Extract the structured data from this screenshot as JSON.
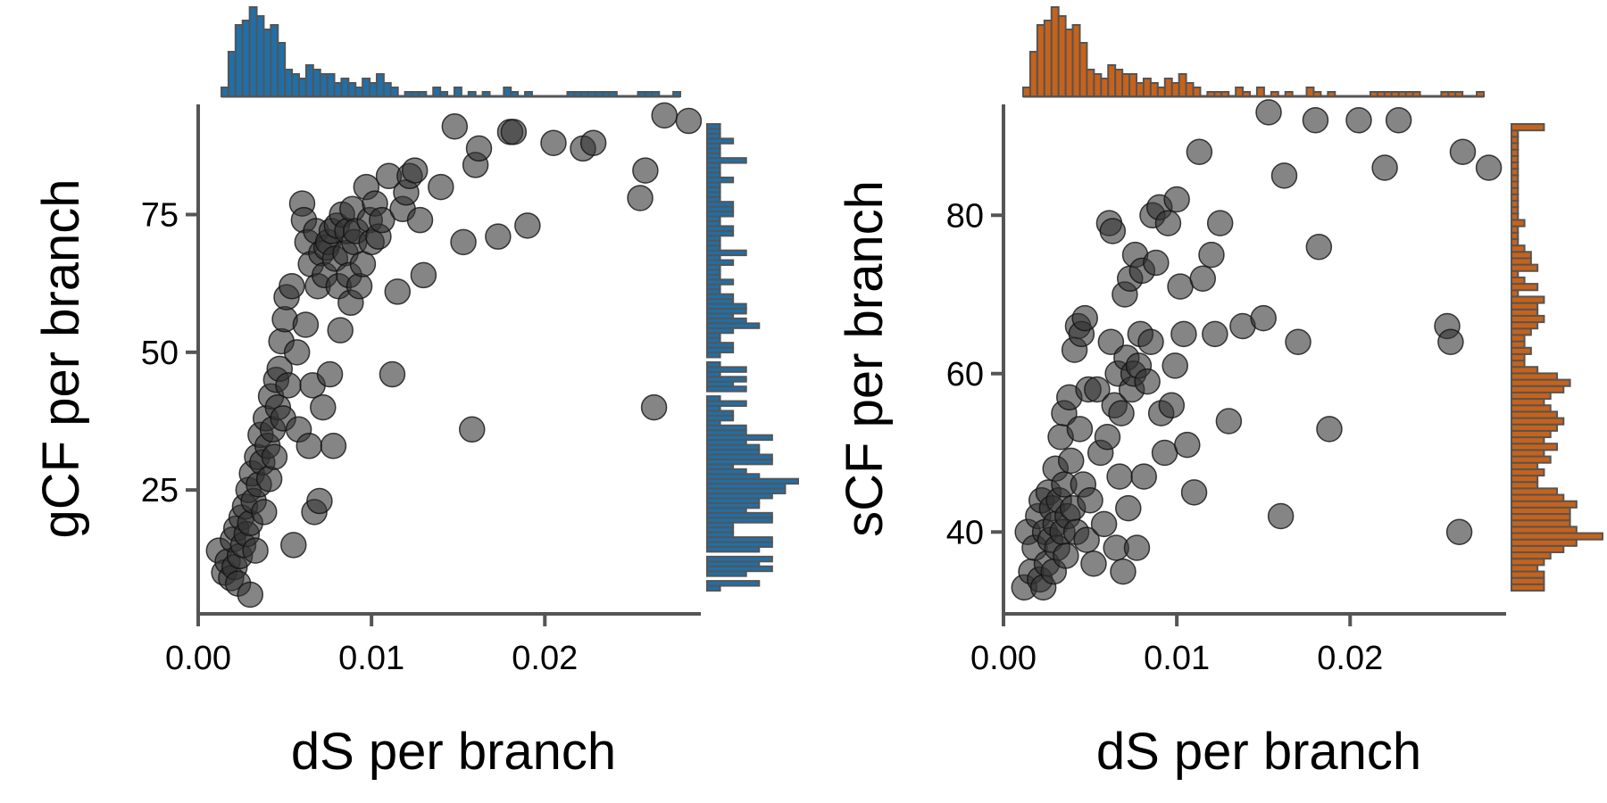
{
  "chart_data": [
    {
      "type": "scatter",
      "marginal_histograms": true,
      "xlabel": "dS per branch",
      "ylabel": "gCF per branch",
      "xlim": [
        0,
        0.029
      ],
      "ylim": [
        3,
        95
      ],
      "xticks": [
        0.0,
        0.01,
        0.02
      ],
      "xtick_labels": [
        "0.00",
        "0.01",
        "0.02"
      ],
      "yticks": [
        25,
        50,
        75
      ],
      "ytick_labels": [
        "25",
        "50",
        "75"
      ],
      "hist_color": "#1f6fa8",
      "point_color": "#333333",
      "points": [
        [
          0.0012,
          14
        ],
        [
          0.0015,
          10
        ],
        [
          0.0017,
          12
        ],
        [
          0.0019,
          9
        ],
        [
          0.002,
          16
        ],
        [
          0.0021,
          11
        ],
        [
          0.0022,
          18
        ],
        [
          0.0023,
          8
        ],
        [
          0.0024,
          13
        ],
        [
          0.0025,
          20
        ],
        [
          0.0026,
          15
        ],
        [
          0.0027,
          22
        ],
        [
          0.0028,
          17
        ],
        [
          0.0029,
          25
        ],
        [
          0.003,
          6
        ],
        [
          0.003,
          19
        ],
        [
          0.0031,
          28
        ],
        [
          0.0032,
          23
        ],
        [
          0.0033,
          14
        ],
        [
          0.0034,
          31
        ],
        [
          0.0035,
          26
        ],
        [
          0.0036,
          35
        ],
        [
          0.0037,
          30
        ],
        [
          0.0038,
          21
        ],
        [
          0.0039,
          38
        ],
        [
          0.004,
          33
        ],
        [
          0.0041,
          27
        ],
        [
          0.0042,
          42
        ],
        [
          0.0043,
          36
        ],
        [
          0.0044,
          31
        ],
        [
          0.0045,
          45
        ],
        [
          0.0046,
          40
        ],
        [
          0.0047,
          47
        ],
        [
          0.0048,
          52
        ],
        [
          0.0049,
          38
        ],
        [
          0.005,
          56
        ],
        [
          0.0051,
          60
        ],
        [
          0.0052,
          44
        ],
        [
          0.0054,
          62
        ],
        [
          0.0055,
          15
        ],
        [
          0.0057,
          50
        ],
        [
          0.0058,
          36
        ],
        [
          0.006,
          77
        ],
        [
          0.0061,
          74
        ],
        [
          0.0062,
          55
        ],
        [
          0.0063,
          70
        ],
        [
          0.0064,
          33
        ],
        [
          0.0065,
          66
        ],
        [
          0.0066,
          44
        ],
        [
          0.0067,
          21
        ],
        [
          0.0068,
          72
        ],
        [
          0.0069,
          62
        ],
        [
          0.007,
          23
        ],
        [
          0.0071,
          68
        ],
        [
          0.0072,
          40
        ],
        [
          0.0073,
          64
        ],
        [
          0.0074,
          69
        ],
        [
          0.0075,
          70
        ],
        [
          0.0076,
          46
        ],
        [
          0.0077,
          72
        ],
        [
          0.0078,
          33
        ],
        [
          0.0079,
          67
        ],
        [
          0.008,
          73
        ],
        [
          0.0081,
          62
        ],
        [
          0.0082,
          54
        ],
        [
          0.0083,
          75
        ],
        [
          0.0085,
          68
        ],
        [
          0.0086,
          72
        ],
        [
          0.0087,
          64
        ],
        [
          0.0088,
          59
        ],
        [
          0.0089,
          76
        ],
        [
          0.009,
          70
        ],
        [
          0.0091,
          72
        ],
        [
          0.0093,
          62
        ],
        [
          0.0095,
          66
        ],
        [
          0.0097,
          80
        ],
        [
          0.0099,
          74
        ],
        [
          0.01,
          70
        ],
        [
          0.0102,
          77
        ],
        [
          0.0104,
          71
        ],
        [
          0.0106,
          74
        ],
        [
          0.011,
          82
        ],
        [
          0.0112,
          46
        ],
        [
          0.0115,
          61
        ],
        [
          0.0118,
          76
        ],
        [
          0.012,
          79
        ],
        [
          0.0122,
          82
        ],
        [
          0.0125,
          83
        ],
        [
          0.0128,
          74
        ],
        [
          0.013,
          64
        ],
        [
          0.014,
          80
        ],
        [
          0.0148,
          91
        ],
        [
          0.0153,
          70
        ],
        [
          0.0158,
          36
        ],
        [
          0.016,
          84
        ],
        [
          0.0162,
          87
        ],
        [
          0.0173,
          71
        ],
        [
          0.018,
          90
        ],
        [
          0.0182,
          90
        ],
        [
          0.019,
          73
        ],
        [
          0.0205,
          88
        ],
        [
          0.0222,
          87
        ],
        [
          0.0228,
          88
        ],
        [
          0.0255,
          78
        ],
        [
          0.0258,
          83
        ],
        [
          0.0263,
          40
        ],
        [
          0.0269,
          93
        ],
        [
          0.0283,
          92
        ]
      ],
      "hist_x_counts": [
        2,
        10,
        16,
        17,
        20,
        18,
        15,
        16,
        12,
        6,
        5,
        4,
        7,
        6,
        5,
        5,
        3,
        4,
        3,
        2,
        4,
        3,
        5,
        3,
        2,
        0,
        1,
        1,
        1,
        0,
        2,
        1,
        0,
        2,
        0,
        1,
        0,
        1,
        0,
        0,
        2,
        1,
        0,
        1,
        0,
        0,
        0,
        0,
        0,
        1,
        1,
        1,
        1,
        1,
        1,
        1,
        0,
        0,
        0,
        1,
        1,
        1,
        0,
        0,
        1
      ],
      "hist_y_counts": [
        1,
        4,
        0,
        3,
        5,
        4,
        5,
        0,
        4,
        5,
        5,
        2,
        2,
        2,
        5,
        5,
        3,
        4,
        4,
        5,
        6,
        6,
        7,
        4,
        3,
        2,
        5,
        5,
        4,
        4,
        3,
        5,
        3,
        3,
        1,
        2,
        2,
        1,
        3,
        1,
        0,
        3,
        2,
        3,
        1,
        3,
        1,
        0,
        1,
        2,
        2,
        1,
        1,
        2,
        4,
        3,
        2,
        3,
        3,
        2,
        2,
        1,
        1,
        2,
        1,
        1,
        1,
        2,
        1,
        3,
        1,
        1,
        1,
        2,
        2,
        1,
        1,
        2,
        2,
        2,
        1,
        1,
        1,
        1,
        2,
        1,
        1,
        1,
        3,
        1,
        1,
        1,
        2,
        1,
        1,
        1
      ]
    },
    {
      "type": "scatter",
      "marginal_histograms": true,
      "xlabel": "dS per branch",
      "ylabel": "sCF per branch",
      "xlim": [
        0,
        0.029
      ],
      "ylim": [
        30,
        94
      ],
      "xticks": [
        0.0,
        0.01,
        0.02
      ],
      "xtick_labels": [
        "0.00",
        "0.01",
        "0.02"
      ],
      "yticks": [
        40,
        60,
        80
      ],
      "ytick_labels": [
        "40",
        "60",
        "80"
      ],
      "hist_color": "#c7621a",
      "point_color": "#333333",
      "points": [
        [
          0.0012,
          33
        ],
        [
          0.0014,
          40
        ],
        [
          0.0016,
          35
        ],
        [
          0.0018,
          38
        ],
        [
          0.002,
          42
        ],
        [
          0.0021,
          34
        ],
        [
          0.0022,
          44
        ],
        [
          0.0023,
          33
        ],
        [
          0.0024,
          40
        ],
        [
          0.0025,
          36
        ],
        [
          0.0026,
          45
        ],
        [
          0.0027,
          39
        ],
        [
          0.0028,
          43
        ],
        [
          0.0029,
          35
        ],
        [
          0.003,
          41
        ],
        [
          0.003,
          48
        ],
        [
          0.0031,
          38
        ],
        [
          0.0032,
          44
        ],
        [
          0.0033,
          52
        ],
        [
          0.0034,
          40
        ],
        [
          0.0035,
          46
        ],
        [
          0.0035,
          55
        ],
        [
          0.0036,
          37
        ],
        [
          0.0037,
          42
        ],
        [
          0.0038,
          57
        ],
        [
          0.0039,
          49
        ],
        [
          0.004,
          43
        ],
        [
          0.0041,
          63
        ],
        [
          0.0042,
          40
        ],
        [
          0.0043,
          66
        ],
        [
          0.0044,
          53
        ],
        [
          0.0045,
          65
        ],
        [
          0.0046,
          46
        ],
        [
          0.0047,
          67
        ],
        [
          0.0048,
          39
        ],
        [
          0.0049,
          58
        ],
        [
          0.005,
          44
        ],
        [
          0.0052,
          36
        ],
        [
          0.0054,
          58
        ],
        [
          0.0056,
          50
        ],
        [
          0.0058,
          41
        ],
        [
          0.006,
          52
        ],
        [
          0.0061,
          79
        ],
        [
          0.0062,
          64
        ],
        [
          0.0063,
          78
        ],
        [
          0.0064,
          56
        ],
        [
          0.0065,
          38
        ],
        [
          0.0066,
          60
        ],
        [
          0.0067,
          47
        ],
        [
          0.0068,
          55
        ],
        [
          0.0069,
          35
        ],
        [
          0.007,
          70
        ],
        [
          0.0071,
          62
        ],
        [
          0.0072,
          43
        ],
        [
          0.0073,
          72
        ],
        [
          0.0074,
          58
        ],
        [
          0.0075,
          60
        ],
        [
          0.0076,
          75
        ],
        [
          0.0077,
          38
        ],
        [
          0.0078,
          61
        ],
        [
          0.0079,
          65
        ],
        [
          0.008,
          73
        ],
        [
          0.0081,
          47
        ],
        [
          0.0083,
          59
        ],
        [
          0.0085,
          64
        ],
        [
          0.0086,
          80
        ],
        [
          0.0088,
          74
        ],
        [
          0.009,
          81
        ],
        [
          0.0091,
          55
        ],
        [
          0.0093,
          50
        ],
        [
          0.0095,
          79
        ],
        [
          0.0097,
          56
        ],
        [
          0.0099,
          61
        ],
        [
          0.01,
          82
        ],
        [
          0.0102,
          71
        ],
        [
          0.0104,
          65
        ],
        [
          0.0106,
          51
        ],
        [
          0.011,
          45
        ],
        [
          0.0113,
          88
        ],
        [
          0.0115,
          72
        ],
        [
          0.012,
          75
        ],
        [
          0.0122,
          65
        ],
        [
          0.0125,
          79
        ],
        [
          0.013,
          54
        ],
        [
          0.0138,
          66
        ],
        [
          0.015,
          67
        ],
        [
          0.0153,
          93
        ],
        [
          0.016,
          42
        ],
        [
          0.0162,
          85
        ],
        [
          0.017,
          64
        ],
        [
          0.018,
          92
        ],
        [
          0.0182,
          76
        ],
        [
          0.0188,
          53
        ],
        [
          0.0205,
          92
        ],
        [
          0.022,
          86
        ],
        [
          0.0228,
          92
        ],
        [
          0.0256,
          66
        ],
        [
          0.0258,
          64
        ],
        [
          0.0263,
          40
        ],
        [
          0.0265,
          88
        ],
        [
          0.028,
          86
        ]
      ],
      "hist_x_counts": [
        2,
        10,
        16,
        17,
        20,
        18,
        15,
        16,
        12,
        6,
        5,
        4,
        7,
        6,
        5,
        5,
        3,
        4,
        3,
        2,
        4,
        3,
        5,
        3,
        2,
        0,
        1,
        1,
        1,
        0,
        2,
        1,
        0,
        2,
        0,
        1,
        0,
        1,
        0,
        0,
        2,
        1,
        0,
        1,
        0,
        0,
        0,
        0,
        0,
        1,
        1,
        1,
        1,
        1,
        1,
        1,
        0,
        0,
        0,
        1,
        1,
        1,
        0,
        0,
        1
      ],
      "hist_y_counts": [
        5,
        5,
        5,
        4,
        5,
        6,
        8,
        10,
        14,
        10,
        9,
        9,
        9,
        10,
        8,
        7,
        4,
        4,
        5,
        4,
        6,
        5,
        7,
        5,
        6,
        7,
        8,
        7,
        6,
        5,
        6,
        8,
        9,
        7,
        4,
        2,
        2,
        3,
        2,
        2,
        3,
        4,
        5,
        4,
        4,
        5,
        1,
        4,
        2,
        1,
        4,
        3,
        3,
        2,
        1,
        1,
        1,
        2,
        1,
        1,
        1,
        1,
        1,
        1,
        1,
        1,
        1,
        1,
        1,
        1,
        1,
        1,
        5
      ]
    }
  ]
}
